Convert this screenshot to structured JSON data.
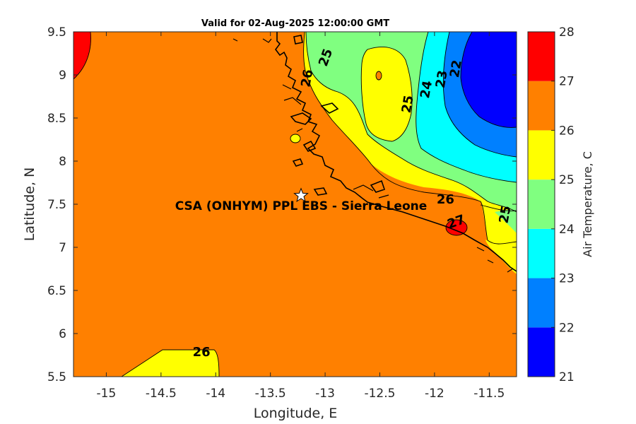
{
  "chart_data": {
    "type": "heatmap",
    "title": "Valid for 02-Aug-2025 12:00:00 GMT",
    "xlabel": "Longitude, E",
    "ylabel": "Latitude, N",
    "xlim": [
      -15.3,
      -11.25
    ],
    "ylim": [
      5.5,
      9.5
    ],
    "xticks": [
      -15,
      -14.5,
      -14,
      -13.5,
      -13,
      -12.5,
      -12,
      -11.5
    ],
    "yticks": [
      5.5,
      6,
      6.5,
      7,
      7.5,
      8,
      8.5,
      9,
      9.5
    ],
    "colorbar": {
      "label": "Air Temperature, C",
      "levels": [
        21,
        22,
        23,
        24,
        25,
        26,
        27,
        28
      ],
      "colors": [
        "#0000ff",
        "#0080ff",
        "#00ffff",
        "#80ff80",
        "#ffff00",
        "#ff8000",
        "#ff0000",
        "#800000"
      ]
    },
    "contour_labels": [
      {
        "text": "25",
        "lon": -12.99,
        "lat": 9.2
      },
      {
        "text": "26",
        "lon": -13.16,
        "lat": 8.96
      },
      {
        "text": "22",
        "lon": -11.8,
        "lat": 9.07
      },
      {
        "text": "23",
        "lon": -11.93,
        "lat": 8.95
      },
      {
        "text": "24",
        "lon": -12.07,
        "lat": 8.83
      },
      {
        "text": "25",
        "lon": -12.24,
        "lat": 8.66
      },
      {
        "text": "26",
        "lon": -11.9,
        "lat": 7.55
      },
      {
        "text": "27",
        "lon": -11.8,
        "lat": 7.29
      },
      {
        "text": "25",
        "lon": -11.35,
        "lat": 7.38
      },
      {
        "text": "26",
        "lon": -14.13,
        "lat": 5.78
      }
    ],
    "site": {
      "name": "CSA (ONHYM) PPL EBS  - Sierra Leone",
      "lon": -13.22,
      "lat": 7.6
    }
  }
}
